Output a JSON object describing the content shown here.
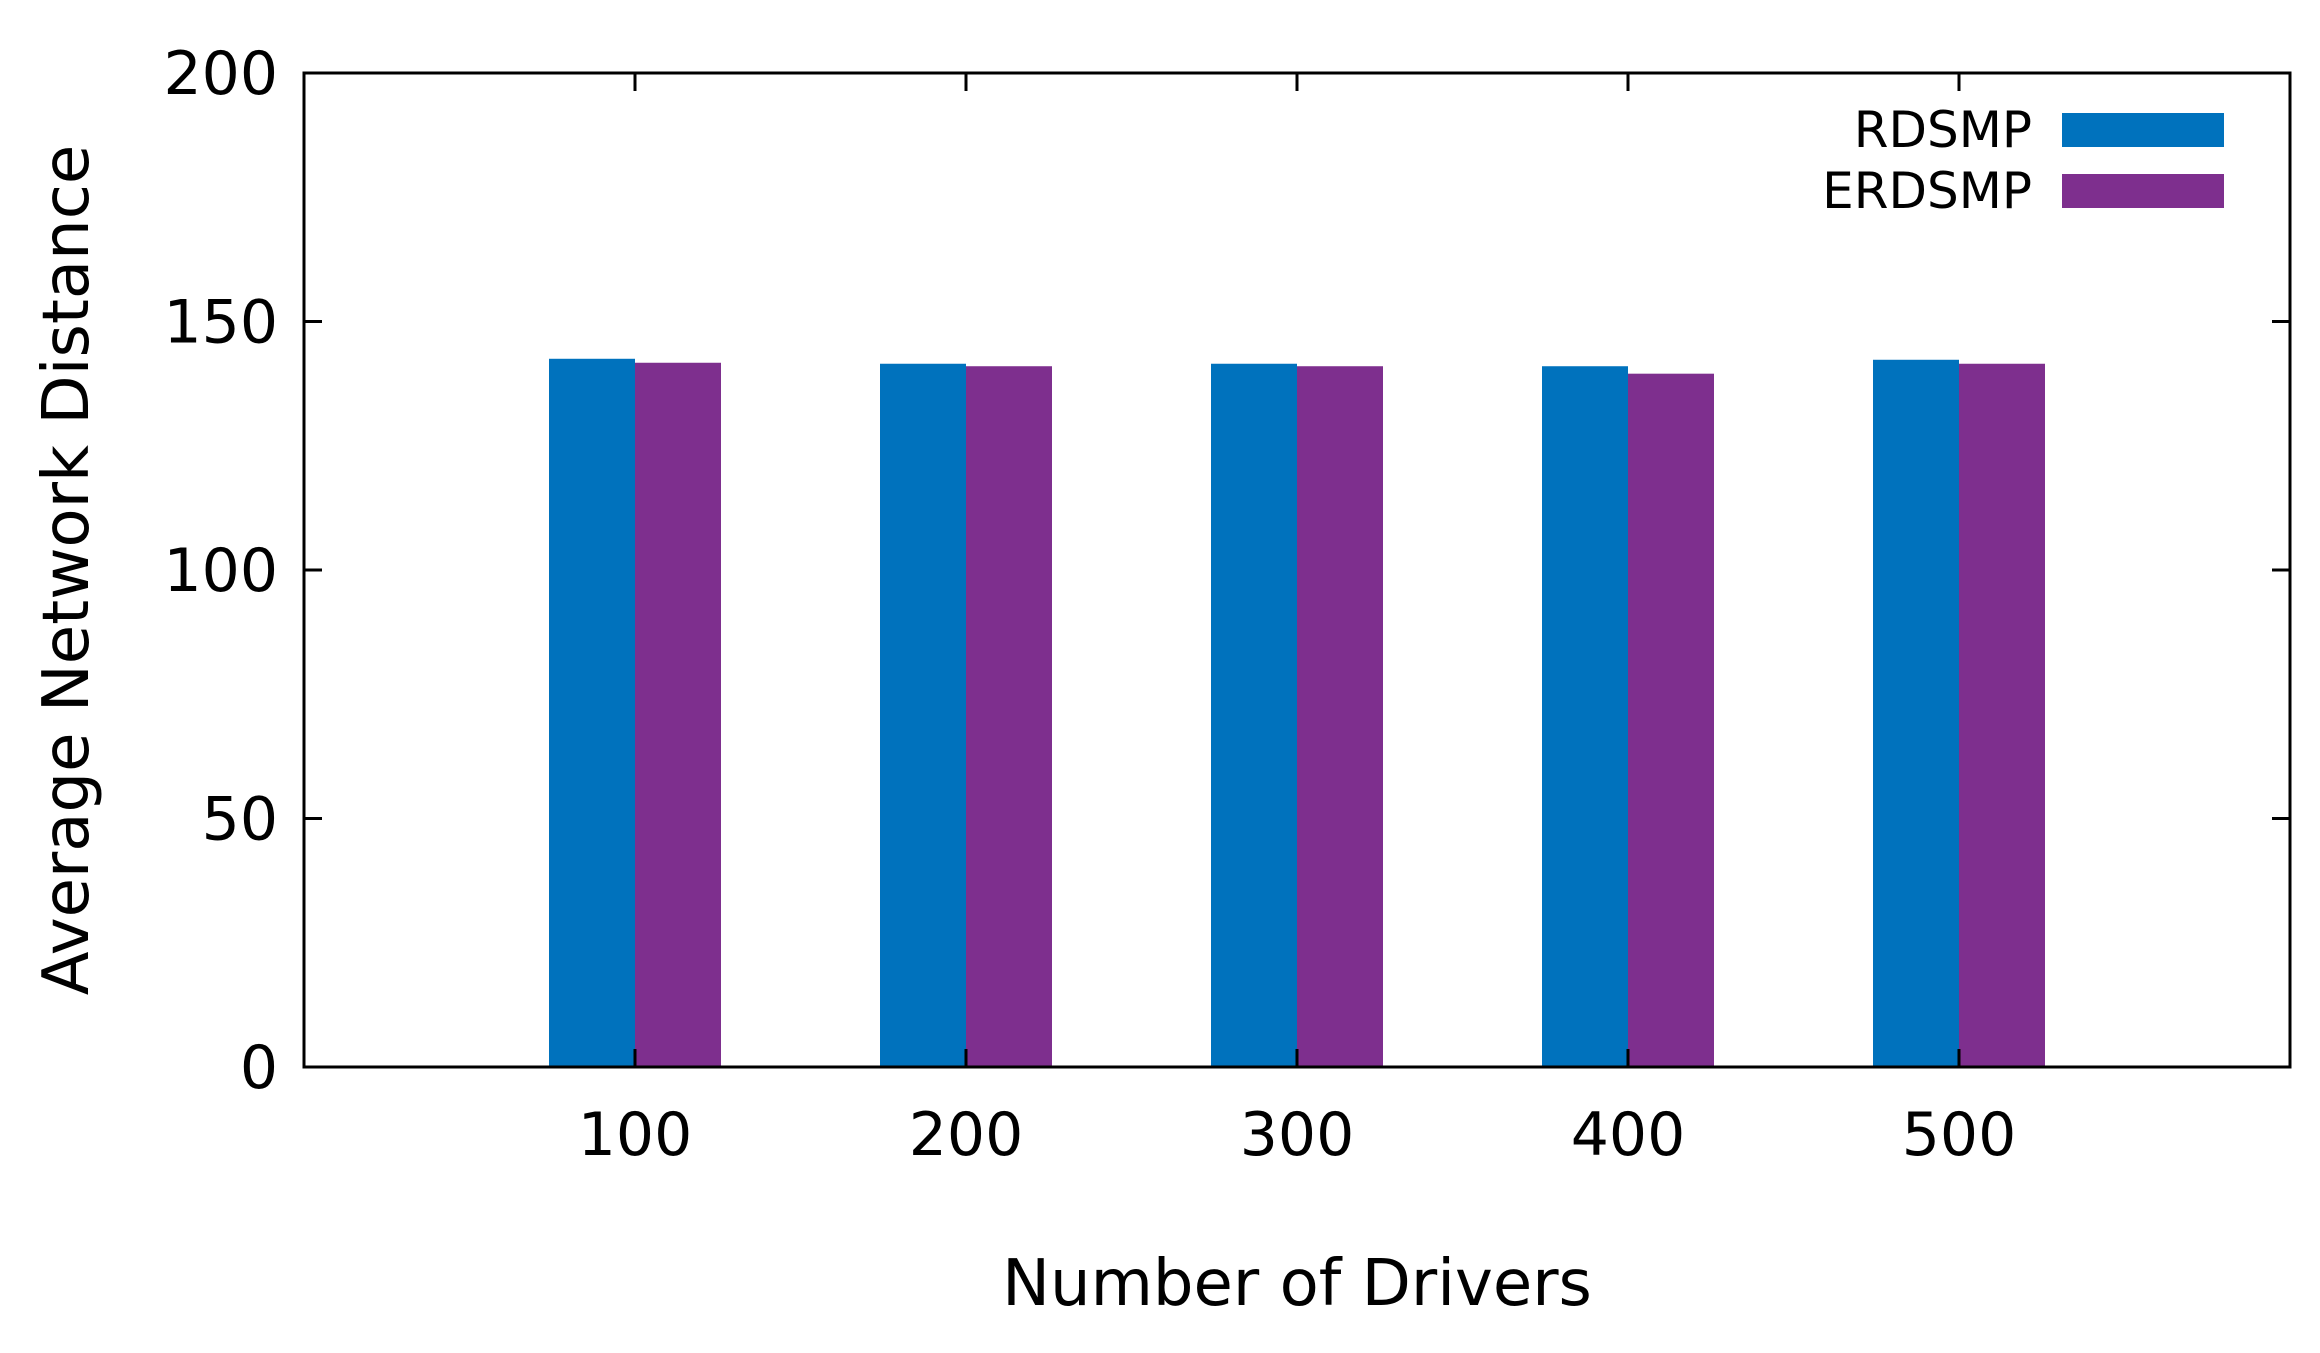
{
  "chart_data": {
    "type": "bar",
    "title": "",
    "xlabel": "Number of Drivers",
    "ylabel": "Average Network Distance",
    "categories": [
      "100",
      "200",
      "300",
      "400",
      "500"
    ],
    "series": [
      {
        "name": "RDSMP",
        "color": "#0072BD",
        "values": [
          142.5,
          141.5,
          141.5,
          141,
          142.3
        ]
      },
      {
        "name": "ERDSMP",
        "color": "#7E2F8E",
        "values": [
          141.7,
          141,
          141,
          139.5,
          141.5
        ]
      }
    ],
    "ylim": [
      0,
      200
    ],
    "yticks": [
      "0",
      "50",
      "100",
      "150",
      "200"
    ],
    "grid": false,
    "legend_position": "top-right"
  }
}
